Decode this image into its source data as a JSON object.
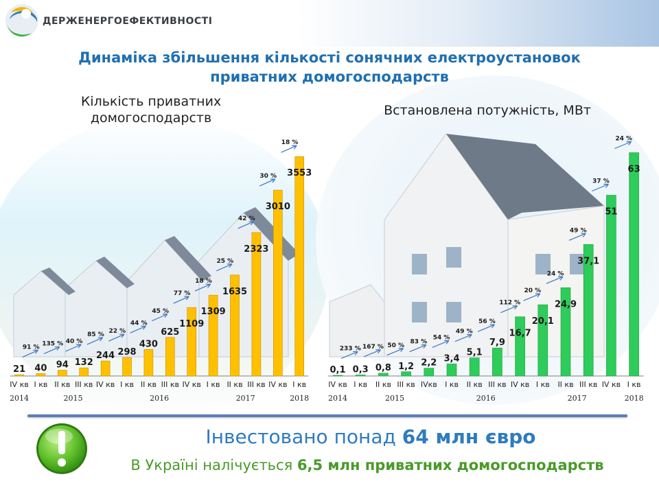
{
  "header": {
    "org_name": "ДЕРЖЕНЕРГОЕФЕКТИВНОСТІ",
    "title_line1": "Динаміка збільшення кількості сонячних електроустановок",
    "title_line2": "приватних домогосподарств"
  },
  "colors": {
    "bar_left": "#ffc000",
    "bar_right": "#2ecc5a",
    "title": "#1f6fb0",
    "accent_blue": "#2f7bbf",
    "accent_green": "#4a9a2a"
  },
  "footer": {
    "invest_prefix": "Інвестовано понад ",
    "invest_bold": "64 млн євро",
    "households_prefix": "В Україні налічується ",
    "households_bold": "6,5 млн приватних домогосподарств"
  },
  "chart_data": [
    {
      "type": "bar",
      "title": "Кількість приватних домогосподарств",
      "categories": [
        "IV кв",
        "I кв",
        "II кв",
        "III кв",
        "IV кв",
        "I кв",
        "II кв",
        "III кв",
        "IV кв",
        "I кв",
        "II кв",
        "III кв",
        "IV кв",
        "I кв"
      ],
      "values": [
        21,
        40,
        94,
        132,
        244,
        298,
        430,
        625,
        1109,
        1309,
        1635,
        2323,
        3010,
        3553
      ],
      "value_labels": [
        "21",
        "40",
        "94",
        "132",
        "244",
        "298",
        "430",
        "625",
        "1109",
        "1309",
        "1635",
        "2323",
        "3010",
        "3553"
      ],
      "growth_labels": [
        "91 %",
        "135 %",
        "40 %",
        "85 %",
        "22 %",
        "44 %",
        "45 %",
        "77 %",
        "18 %",
        "25 %",
        "42 %",
        "30 %",
        "18 %"
      ],
      "years": [
        {
          "label": "2014",
          "at": 0
        },
        {
          "label": "2015",
          "at": 2.5
        },
        {
          "label": "2016",
          "at": 6.5
        },
        {
          "label": "2017",
          "at": 10.5
        },
        {
          "label": "2018",
          "at": 13
        }
      ],
      "ylim": [
        0,
        3700
      ]
    },
    {
      "type": "bar",
      "title": "Встановлена потужність, МВт",
      "categories": [
        "IV кв",
        "I кв",
        "II кв",
        "III кв",
        "IVкв",
        "I кв",
        "II кв",
        "III кв",
        "IV кв",
        "I кв",
        "II кв",
        "III кв",
        "IV кв",
        "I кв"
      ],
      "values": [
        0.1,
        0.3,
        0.8,
        1.2,
        2.2,
        3.4,
        5.1,
        7.9,
        16.7,
        20.1,
        24.9,
        37.1,
        51,
        63
      ],
      "value_labels": [
        "0,1",
        "0,3",
        "0,8",
        "1,2",
        "2,2",
        "3,4",
        "5,1",
        "7,9",
        "16,7",
        "20,1",
        "24,9",
        "37,1",
        "51",
        "63"
      ],
      "growth_labels": [
        "233 %",
        "167 %",
        "50 %",
        "83 %",
        "54 %",
        "49 %",
        "56 %",
        "112 %",
        "20 %",
        "24 %",
        "49 %",
        "37 %",
        "24 %"
      ],
      "years": [
        {
          "label": "2014",
          "at": 0
        },
        {
          "label": "2015",
          "at": 2.5
        },
        {
          "label": "2016",
          "at": 6.5
        },
        {
          "label": "2017",
          "at": 10.5
        },
        {
          "label": "2018",
          "at": 13
        }
      ],
      "ylim": [
        0,
        66
      ]
    }
  ]
}
